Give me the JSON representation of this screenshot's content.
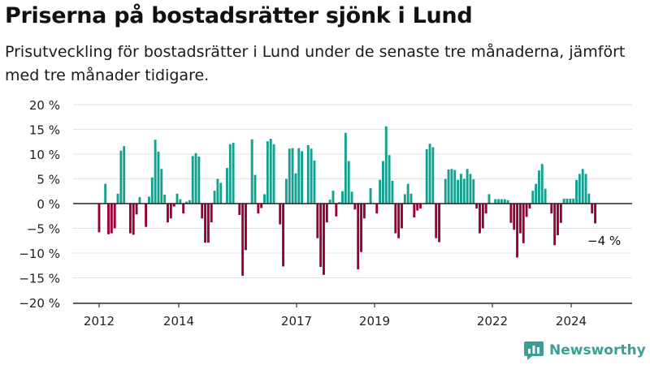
{
  "header": {
    "title": "Priserna på bostadsrätter sjönk i Lund",
    "subtitle": "Prisutveckling för bostadsrätter i Lund under de senaste tre månaderna, jämfört med tre månader tidigare."
  },
  "brand": {
    "name": "Newsworthy",
    "icon": "newsworthy-logo-icon"
  },
  "chart_data": {
    "type": "bar",
    "y_unit": "%",
    "ylim": [
      -20,
      20
    ],
    "y_ticks": [
      20,
      15,
      10,
      5,
      0,
      -5,
      -10,
      -15,
      -20
    ],
    "y_tick_labels": [
      "20 %",
      "15 %",
      "10 %",
      "5 %",
      "0 %",
      "−5 %",
      "−10 %",
      "−15 %",
      "−20 %"
    ],
    "x_tick_labels": [
      "2012",
      "2014",
      "2017",
      "2019",
      "2022",
      "2024"
    ],
    "grid": true,
    "colors": {
      "positive": "#16a08f",
      "negative": "#9a0038",
      "axis": "#333333",
      "grid": "#e3e3e3"
    },
    "annotation": {
      "text": "−4 %",
      "target": "last"
    },
    "values": [
      -5.8,
      0,
      4.0,
      -6.2,
      -6.0,
      -5.0,
      2.0,
      10.7,
      11.6,
      0,
      -6.0,
      -6.3,
      -2.2,
      1.3,
      0,
      -4.7,
      1.4,
      5.3,
      12.9,
      10.5,
      7.0,
      1.8,
      -3.8,
      -3.0,
      -0.6,
      2.0,
      0.9,
      -2.0,
      0.4,
      0.7,
      9.6,
      10.2,
      9.5,
      -3.0,
      -7.9,
      -7.9,
      -3.8,
      2.6,
      5.0,
      4.2,
      0,
      7.2,
      12.0,
      12.3,
      0,
      -2.3,
      -14.6,
      -9.4,
      0,
      13.0,
      5.8,
      -2.0,
      -0.9,
      1.9,
      12.6,
      13.1,
      12.0,
      0,
      -4.2,
      -12.7,
      5.0,
      11.1,
      11.2,
      6.1,
      11.2,
      10.6,
      0,
      11.8,
      11.1,
      8.7,
      -7.0,
      -12.8,
      -14.4,
      -3.8,
      0.8,
      2.6,
      -2.6,
      0.3,
      2.5,
      14.3,
      8.6,
      2.4,
      -1.2,
      -13.3,
      -9.8,
      -3.0,
      0,
      3.1,
      0,
      -2.0,
      4.8,
      8.6,
      15.6,
      9.8,
      4.6,
      -6.0,
      -7.0,
      -5.0,
      1.9,
      4.0,
      2.0,
      -2.8,
      -1.4,
      -1.0,
      0,
      11.0,
      12.1,
      11.4,
      -7.0,
      -7.8,
      0,
      5.0,
      6.9,
      7.0,
      6.8,
      4.8,
      6.0,
      5.0,
      7.0,
      6.0,
      4.9,
      -1.0,
      -6.0,
      -5.0,
      -2.0,
      1.9,
      0,
      0.9,
      0.9,
      0.9,
      0.9,
      0.7,
      -3.9,
      -5.3,
      -10.9,
      -6.0,
      -8.0,
      -2.7,
      -1.0,
      2.6,
      4.0,
      6.7,
      8.0,
      3.0,
      0,
      -2.0,
      -8.4,
      -6.4,
      -3.9,
      1.0,
      1.0,
      1.0,
      1.0,
      4.8,
      6.0,
      7.0,
      6.0,
      2.0,
      -2.0,
      -4.0
    ]
  }
}
